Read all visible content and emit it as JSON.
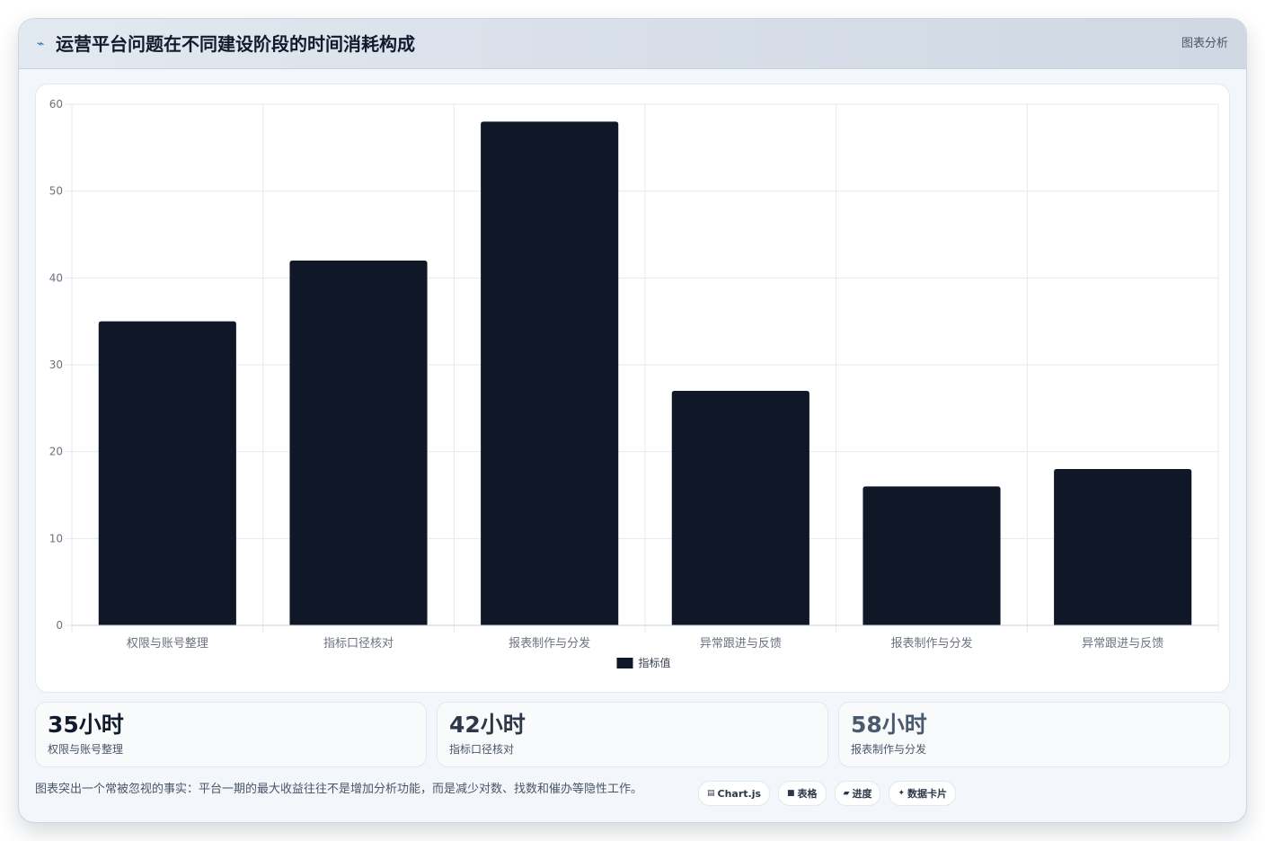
{
  "header": {
    "icon": "trend-line-icon",
    "title": "运营平台问题在不同建设阶段的时间消耗构成",
    "tag": "图表分析"
  },
  "colors": {
    "bar": "#101828",
    "grid": "#e5e9ee",
    "axis_text": "#6b7280",
    "accent": "#2b6cb0"
  },
  "chart_data": {
    "type": "bar",
    "categories": [
      "权限与账号整理",
      "指标口径核对",
      "报表制作与分发",
      "异常跟进与反馈",
      "报表制作与分发",
      "异常跟进与反馈"
    ],
    "series": [
      {
        "name": "指标值",
        "values": [
          35,
          42,
          58,
          27,
          16,
          18
        ]
      }
    ],
    "ylim": [
      0,
      60
    ],
    "yticks": [
      0,
      10,
      20,
      30,
      40,
      50,
      60
    ],
    "grid": true,
    "legend": "bottom-center"
  },
  "stats": [
    {
      "value": "35小时",
      "label": "权限与账号整理",
      "color": "#111b2e"
    },
    {
      "value": "42小时",
      "label": "指标口径核对",
      "color": "#2d3748"
    },
    {
      "value": "58小时",
      "label": "报表制作与分发",
      "color": "#4a5a6e"
    }
  ],
  "footer": {
    "note": "图表突出一个常被忽视的事实：平台一期的最大收益往往不是增加分析功能，而是减少对数、找数和催办等隐性工作。",
    "chips": [
      {
        "icon": "▤",
        "icon_name": "chart-icon",
        "label": "Chart.js"
      },
      {
        "icon": "■",
        "icon_name": "table-icon",
        "label": "表格"
      },
      {
        "icon": "▰",
        "icon_name": "progress-icon",
        "label": "进度"
      },
      {
        "icon": "✦",
        "icon_name": "sparkle-icon",
        "label": "数据卡片"
      }
    ]
  }
}
